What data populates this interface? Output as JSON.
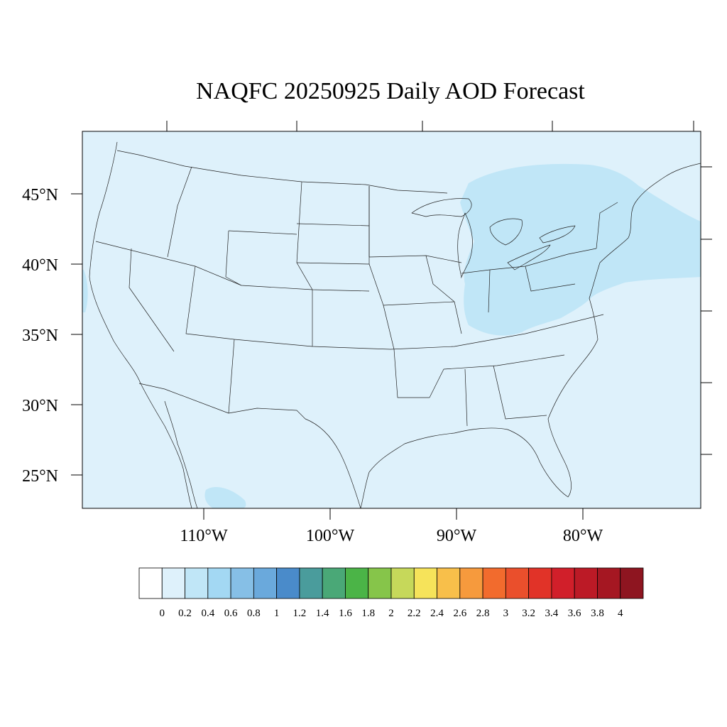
{
  "title": "NAQFC 20250925 Daily AOD Forecast",
  "lat_labels": [
    "45°N",
    "40°N",
    "35°N",
    "30°N",
    "25°N"
  ],
  "lon_labels": [
    "110°W",
    "100°W",
    "90°W",
    "80°W"
  ],
  "colorbar": {
    "colors": [
      "#ffffff",
      "#def1fb",
      "#c0e6f7",
      "#a3d8f3",
      "#86bfe6",
      "#6aa9dc",
      "#4a8bca",
      "#4a9c9c",
      "#4aa877",
      "#4bb447",
      "#86c54a",
      "#c6d85a",
      "#f6e35a",
      "#f8bf4a",
      "#f69a3d",
      "#f26b2d",
      "#ea4f2c",
      "#e13328",
      "#d11f2a",
      "#bc1a26",
      "#a51722",
      "#8e1520"
    ],
    "labels": [
      "0",
      "0.2",
      "0.4",
      "0.6",
      "0.8",
      "1",
      "1.2",
      "1.4",
      "1.6",
      "1.8",
      "2",
      "2.2",
      "2.4",
      "2.6",
      "2.8",
      "3",
      "3.2",
      "3.4",
      "3.6",
      "3.8",
      "4"
    ]
  },
  "field_colors": {
    "background_level": "#def1fb",
    "elevated_level": "#c0e6f7"
  }
}
